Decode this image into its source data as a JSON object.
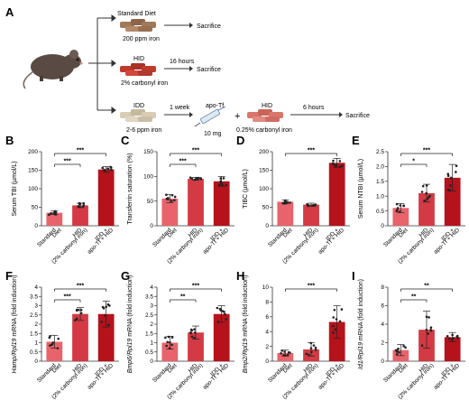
{
  "schema": {
    "letter": "A",
    "arms": [
      {
        "diet": "Standard Diet",
        "iron": "200 ppm iron",
        "arrow_label": "",
        "end": "Sacrifice",
        "color": "#a0785a"
      },
      {
        "diet": "HID",
        "iron": "2% carbonyl iron",
        "arrow_label": "16 hours",
        "end": "Sacrifice",
        "color": "#c0392b"
      },
      {
        "diet": "IDD",
        "iron": "2-6 ppm iron",
        "arrow_label": "1 week",
        "end": "Sacrifice",
        "color": "#ccc0a8"
      }
    ],
    "apo_tf": {
      "label": "apo-Tf",
      "dose": "10 mg"
    },
    "plus": "+",
    "hid2": {
      "label": "HID",
      "iron": "0.25% carbonyl iron",
      "arrow_label": "6 hours",
      "color": "#d9756a"
    }
  },
  "categories": [
    "Standard Diet",
    "HID (2% carbonyl iron)",
    "IDD + apo-Tf + HID"
  ],
  "colors": {
    "light": "#e8636b",
    "mid": "#d33a44",
    "dark": "#b5121b",
    "dot": "#222222"
  },
  "chart_data": [
    {
      "type": "bar",
      "panel": "B",
      "ylabel": "Serum TBI (µmol/L)",
      "ylim": [
        0,
        200
      ],
      "yticks": [
        0,
        50,
        100,
        150,
        200
      ],
      "categories": [
        "Standard Diet",
        "HID",
        "IDD + apo-Tf + HID"
      ],
      "values": [
        35,
        55,
        152
      ],
      "errors": [
        5,
        6,
        8
      ],
      "comparisons": [
        {
          "from": 0,
          "to": 1,
          "stars": "***"
        },
        {
          "from": 0,
          "to": 2,
          "stars": "***"
        }
      ]
    },
    {
      "type": "bar",
      "panel": "C",
      "ylabel": "Transferrin saturation (%)",
      "ylim": [
        0,
        150
      ],
      "yticks": [
        0,
        50,
        100,
        150
      ],
      "categories": [
        "Standard Diet",
        "HID",
        "IDD + apo-Tf + HID"
      ],
      "values": [
        55,
        95,
        90
      ],
      "errors": [
        8,
        3,
        10
      ],
      "comparisons": [
        {
          "from": 0,
          "to": 1,
          "stars": "***"
        },
        {
          "from": 0,
          "to": 2,
          "stars": "***"
        }
      ]
    },
    {
      "type": "bar",
      "panel": "D",
      "ylabel": "TIBC (µmol/L)",
      "ylim": [
        0,
        200
      ],
      "yticks": [
        0,
        50,
        100,
        150,
        200
      ],
      "categories": [
        "Standard Diet",
        "HID",
        "IDD + apo-Tf + HID"
      ],
      "values": [
        65,
        57,
        170
      ],
      "errors": [
        5,
        4,
        12
      ],
      "comparisons": [
        {
          "from": 0,
          "to": 2,
          "stars": "***"
        }
      ]
    },
    {
      "type": "bar",
      "panel": "E",
      "ylabel": "Serum NTBI (µmol/L)",
      "ylim": [
        0,
        2.5
      ],
      "yticks": [
        0,
        0.5,
        1.0,
        1.5,
        2.0,
        2.5
      ],
      "categories": [
        "Standard Diet",
        "HID",
        "IDD + apo-Tf + HID"
      ],
      "values": [
        0.6,
        1.1,
        1.62
      ],
      "errors": [
        0.15,
        0.3,
        0.45
      ],
      "comparisons": [
        {
          "from": 0,
          "to": 1,
          "stars": "*"
        },
        {
          "from": 0,
          "to": 2,
          "stars": "***"
        }
      ]
    },
    {
      "type": "bar",
      "panel": "F",
      "ylabel_gene": "Hamp/Rpl19",
      "ylabel": " mRNA (fold induction)",
      "ylim": [
        0,
        4
      ],
      "yticks": [
        0,
        0.5,
        1,
        1.5,
        2,
        2.5,
        3,
        3.5,
        4
      ],
      "categories": [
        "Standard Diet",
        "HID",
        "IDD + apo-Tf + HID"
      ],
      "values": [
        1.05,
        2.55,
        2.55
      ],
      "errors": [
        0.35,
        0.35,
        0.7
      ],
      "comparisons": [
        {
          "from": 0,
          "to": 1,
          "stars": "***"
        },
        {
          "from": 0,
          "to": 2,
          "stars": "***"
        }
      ]
    },
    {
      "type": "bar",
      "panel": "G",
      "ylabel_gene": "Bmp6/Rpl19",
      "ylabel": " mRNA (fold induction)",
      "ylim": [
        0,
        4
      ],
      "yticks": [
        0,
        0.5,
        1,
        1.5,
        2,
        2.5,
        3,
        3.5,
        4
      ],
      "categories": [
        "Standard Diet",
        "HID",
        "IDD + apo-Tf + HID"
      ],
      "values": [
        1.0,
        1.55,
        2.55
      ],
      "errors": [
        0.35,
        0.35,
        0.45
      ],
      "comparisons": [
        {
          "from": 0,
          "to": 1,
          "stars": "**"
        },
        {
          "from": 0,
          "to": 2,
          "stars": "***"
        }
      ]
    },
    {
      "type": "bar",
      "panel": "H",
      "ylabel_gene": "Bmp2/Rpl19",
      "ylabel": " mRNA (fold induction)",
      "ylim": [
        0,
        10
      ],
      "yticks": [
        0,
        2,
        4,
        6,
        8,
        10
      ],
      "categories": [
        "Standard Diet",
        "HID",
        "IDD + apo-Tf + HID"
      ],
      "values": [
        1.1,
        1.6,
        5.3
      ],
      "errors": [
        0.4,
        0.9,
        2.2
      ],
      "comparisons": [
        {
          "from": 0,
          "to": 2,
          "stars": "***"
        }
      ]
    },
    {
      "type": "bar",
      "panel": "I",
      "ylabel_gene": "Id1/Rpl19",
      "ylabel": " mRNA (fold induction)",
      "ylim": [
        0,
        8
      ],
      "yticks": [
        0,
        2,
        4,
        6,
        8
      ],
      "categories": [
        "Standard Diet",
        "HID",
        "IDD + apo-Tf + HID"
      ],
      "values": [
        1.2,
        3.4,
        2.6
      ],
      "errors": [
        0.6,
        2.0,
        0.5
      ],
      "comparisons": [
        {
          "from": 0,
          "to": 1,
          "stars": "**"
        },
        {
          "from": 0,
          "to": 2,
          "stars": "**"
        }
      ]
    }
  ]
}
